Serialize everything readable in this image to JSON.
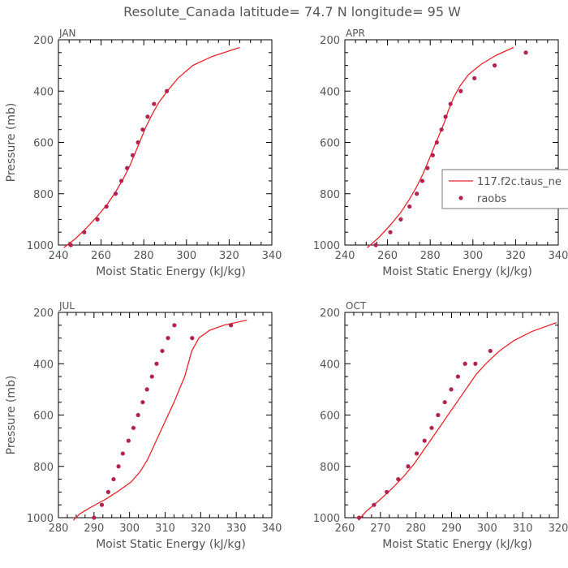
{
  "title": "Resolute_Canada  latitude= 74.7 N longitude= 95 W",
  "colors": {
    "model": "#e8252d",
    "raobs": "#b2234e",
    "text": "#555555",
    "axis": "#000000"
  },
  "legend": {
    "model_label": "117.f2c.taus_ne",
    "obs_label": "raobs",
    "placement": "right-middle of APR panel"
  },
  "chart_data": [
    {
      "type": "line",
      "label": "JAN",
      "xlabel": "Moist Static Energy (kJ/kg)",
      "ylabel": "Pressure (mb)",
      "xlim": [
        240,
        340
      ],
      "ylim": [
        1000,
        200
      ],
      "xticks": [
        240,
        260,
        280,
        300,
        320,
        340
      ],
      "yticks": [
        1000,
        800,
        600,
        400,
        200
      ],
      "model": {
        "x": [
          242.5,
          248,
          253,
          258,
          263,
          267,
          270.5,
          273.5,
          276,
          278.5,
          281,
          284,
          287,
          291,
          296,
          303,
          312,
          325
        ],
        "y": [
          1010,
          975,
          935,
          890,
          840,
          790,
          740,
          690,
          640,
          590,
          540,
          490,
          445,
          400,
          350,
          300,
          265,
          230
        ]
      },
      "obs": {
        "x": [
          245.8,
          252.1,
          258.3,
          262.5,
          266.8,
          269.5,
          272.2,
          274.8,
          277.3,
          279.5,
          281.8,
          284.8,
          290.8
        ],
        "y": [
          1000,
          950,
          900,
          850,
          800,
          750,
          700,
          650,
          600,
          550,
          500,
          450,
          400
        ]
      }
    },
    {
      "type": "line",
      "label": "APR",
      "xlabel": "Moist Static Energy (kJ/kg)",
      "ylabel": "",
      "xlim": [
        240,
        340
      ],
      "ylim": [
        1000,
        200
      ],
      "xticks": [
        240,
        260,
        280,
        300,
        320,
        340
      ],
      "yticks": [
        1000,
        800,
        600,
        400,
        200
      ],
      "model": {
        "x": [
          250.5,
          256,
          261,
          266,
          270,
          273.5,
          276.5,
          279,
          281.5,
          284,
          286.5,
          288.5,
          291,
          294,
          298,
          304,
          311,
          319
        ],
        "y": [
          1010,
          970,
          925,
          875,
          825,
          775,
          725,
          675,
          625,
          575,
          525,
          475,
          425,
          380,
          335,
          295,
          260,
          230
        ]
      },
      "obs": {
        "x": [
          254.5,
          261.3,
          266.2,
          270.3,
          273.7,
          276.3,
          278.7,
          281.2,
          283.1,
          285.3,
          287.2,
          289.5,
          294.3,
          300.7,
          310.2,
          324.8
        ],
        "y": [
          1000,
          950,
          900,
          850,
          800,
          750,
          700,
          650,
          600,
          550,
          500,
          450,
          400,
          350,
          300,
          250
        ]
      }
    },
    {
      "type": "line",
      "label": "JUL",
      "xlabel": "Moist Static Energy (kJ/kg)",
      "ylabel": "Pressure (mb)",
      "xlim": [
        280,
        340
      ],
      "ylim": [
        1000,
        200
      ],
      "xticks": [
        280,
        290,
        300,
        310,
        320,
        330,
        340
      ],
      "yticks": [
        1000,
        800,
        600,
        400,
        200
      ],
      "model": {
        "x": [
          284.2,
          286,
          289,
          293,
          297,
          300.5,
          303,
          305,
          306.5,
          308,
          309.5,
          311,
          312.5,
          314,
          315.5,
          316.5,
          317.5,
          319.5,
          322.5,
          326.5,
          333
        ],
        "y": [
          1010,
          985,
          960,
          930,
          895,
          860,
          820,
          775,
          730,
          685,
          640,
          595,
          550,
          500,
          450,
          400,
          350,
          300,
          270,
          250,
          230
        ]
      },
      "obs": {
        "x": [
          290,
          292.2,
          294,
          295.5,
          296.9,
          298.1,
          299.7,
          301.1,
          302.4,
          303.7,
          304.9,
          306.3,
          307.6,
          309.2,
          310.8,
          312.6,
          317.6,
          328.5
        ],
        "y": [
          1000,
          950,
          900,
          850,
          800,
          750,
          700,
          650,
          600,
          550,
          500,
          450,
          400,
          350,
          300,
          250,
          300,
          250
        ]
      }
    },
    {
      "type": "line",
      "label": "OCT",
      "xlabel": "Moist Static Energy (kJ/kg)",
      "ylabel": "",
      "xlim": [
        260,
        320
      ],
      "ylim": [
        1000,
        200
      ],
      "xticks": [
        260,
        270,
        280,
        290,
        300,
        310,
        320
      ],
      "yticks": [
        1000,
        800,
        600,
        400,
        200
      ],
      "model": {
        "x": [
          263.8,
          266,
          269.5,
          273,
          276.5,
          279.5,
          282,
          284.5,
          287,
          289.5,
          292,
          294.5,
          297,
          300,
          303.5,
          307.5,
          312.5,
          319.5
        ],
        "y": [
          1010,
          975,
          935,
          890,
          840,
          790,
          740,
          690,
          640,
          590,
          540,
          490,
          440,
          395,
          350,
          310,
          275,
          240
        ]
      },
      "obs": {
        "x": [
          264,
          268.2,
          271.8,
          275,
          277.8,
          280.2,
          282.4,
          284.4,
          286.2,
          288.1,
          289.9,
          291.8,
          293.8,
          296.7,
          300.9
        ],
        "y": [
          1000,
          950,
          900,
          850,
          800,
          750,
          700,
          650,
          600,
          550,
          500,
          450,
          400,
          400,
          350
        ]
      }
    }
  ]
}
